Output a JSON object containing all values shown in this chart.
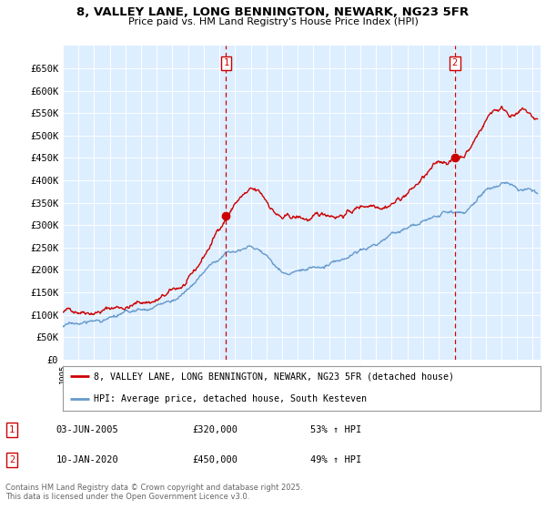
{
  "title_line1": "8, VALLEY LANE, LONG BENNINGTON, NEWARK, NG23 5FR",
  "title_line2": "Price paid vs. HM Land Registry's House Price Index (HPI)",
  "background_color": "#ffffff",
  "plot_background": "#ddeeff",
  "grid_color": "#ffffff",
  "red_line_color": "#cc0000",
  "blue_line_color": "#6699cc",
  "marker1_year": 2005.42,
  "marker1_price": 320000,
  "marker2_year": 2020.03,
  "marker2_price": 450000,
  "marker1_label": "1",
  "marker2_label": "2",
  "table_row1": [
    "1",
    "03-JUN-2005",
    "£320,000",
    "53% ↑ HPI"
  ],
  "table_row2": [
    "2",
    "10-JAN-2020",
    "£450,000",
    "49% ↑ HPI"
  ],
  "legend_red": "8, VALLEY LANE, LONG BENNINGTON, NEWARK, NG23 5FR (detached house)",
  "legend_blue": "HPI: Average price, detached house, South Kesteven",
  "footer": "Contains HM Land Registry data © Crown copyright and database right 2025.\nThis data is licensed under the Open Government Licence v3.0.",
  "ylim_min": 0,
  "ylim_max": 700000,
  "yticks": [
    0,
    50000,
    100000,
    150000,
    200000,
    250000,
    300000,
    350000,
    400000,
    450000,
    500000,
    550000,
    600000,
    650000
  ],
  "xmin": 1995,
  "xmax": 2025.5
}
